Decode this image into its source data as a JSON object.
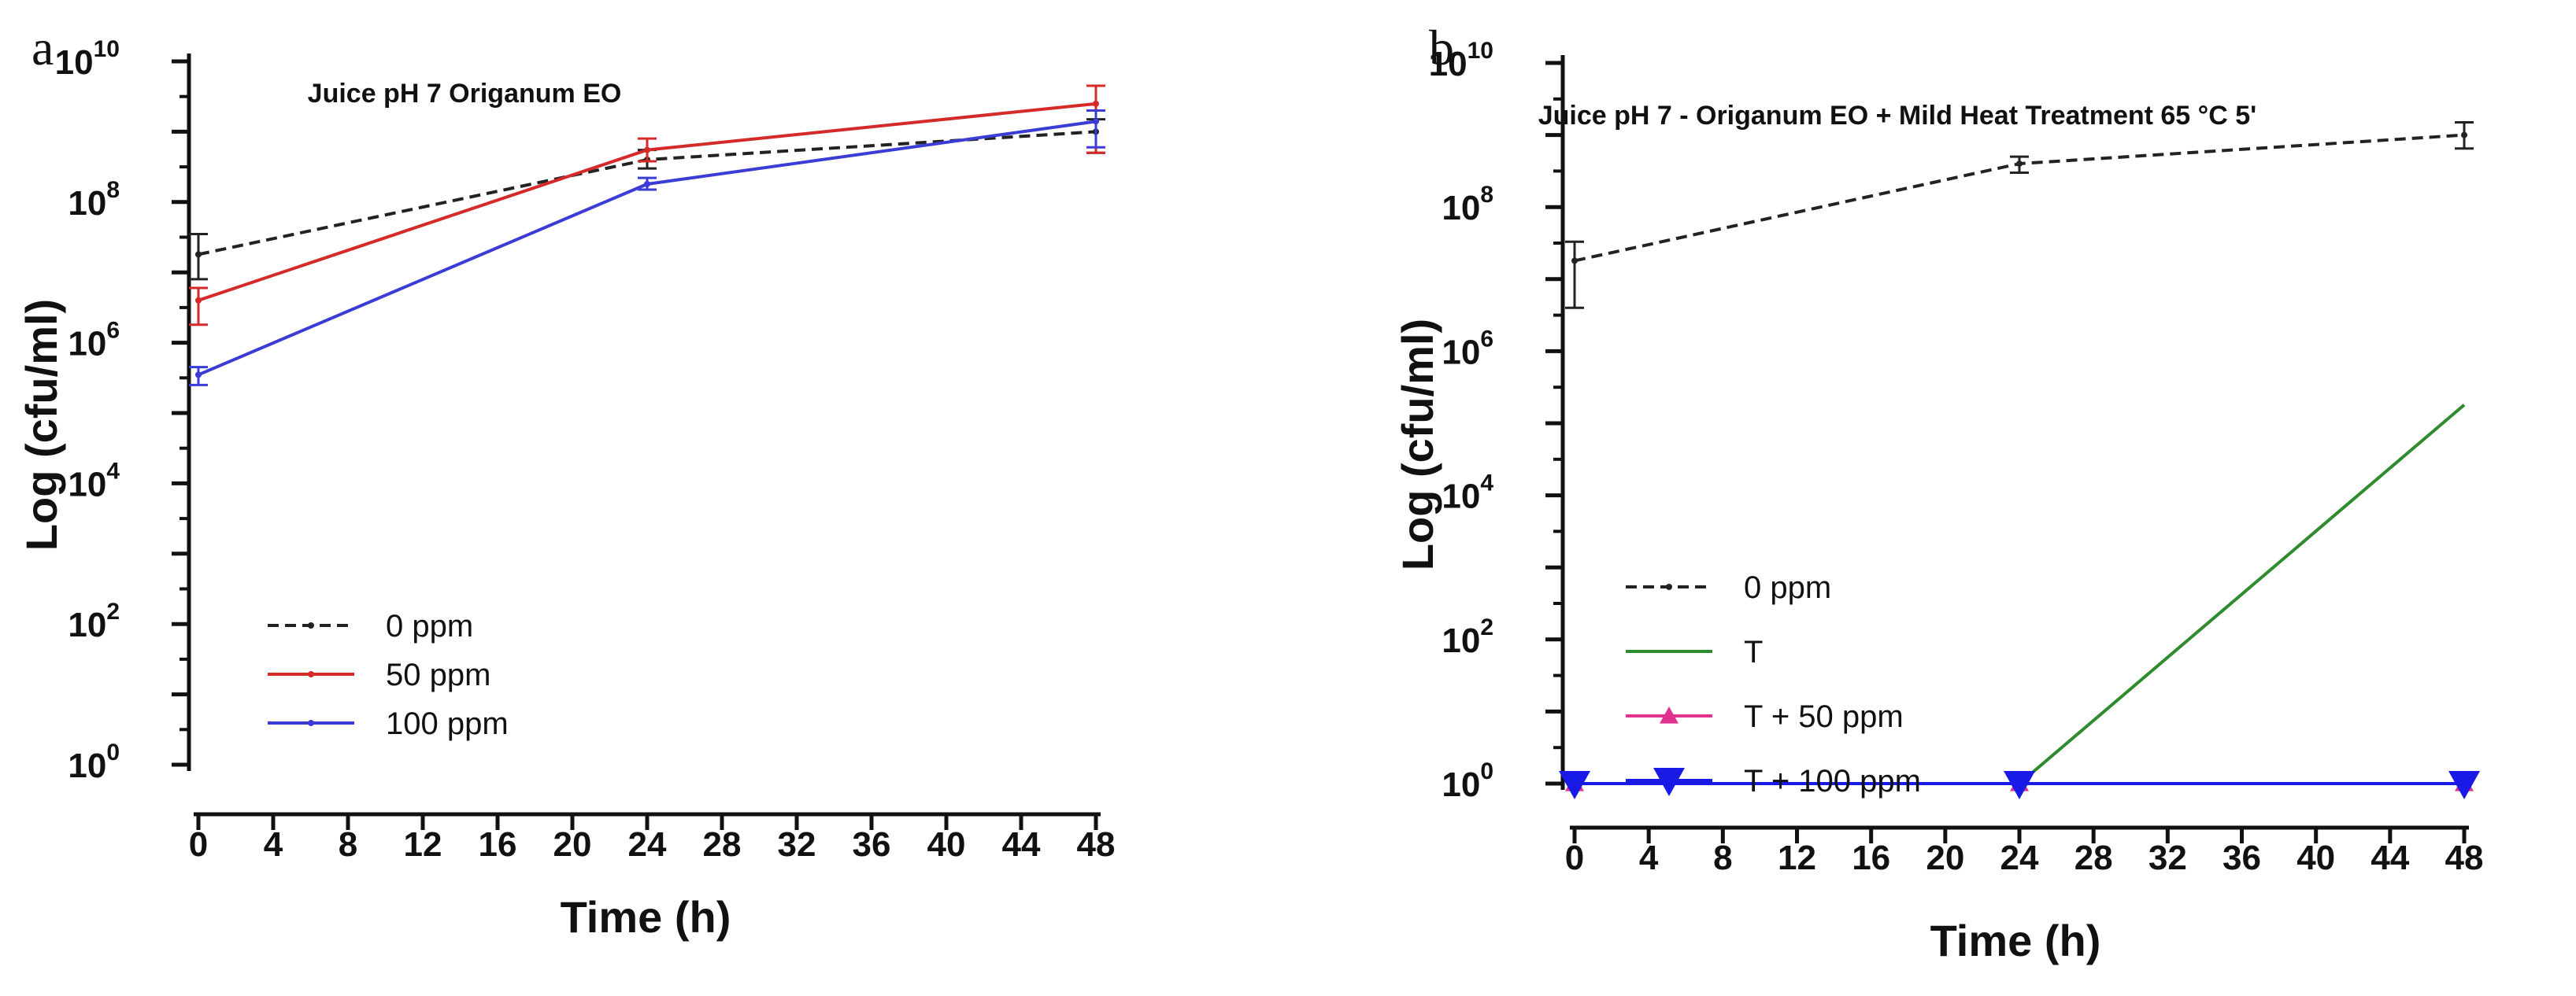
{
  "chart_data": [
    {
      "type": "line",
      "panel_label": "a",
      "title": "Juice pH 7 Origanum EO",
      "xlabel": "Time (h)",
      "ylabel": "Log (cfu/ml)",
      "xlim": [
        0,
        48
      ],
      "ylim": [
        1,
        10000000000
      ],
      "yscale": "log",
      "x_ticks": [
        0,
        4,
        8,
        12,
        16,
        20,
        24,
        28,
        32,
        36,
        40,
        44,
        48
      ],
      "y_ticks": [
        {
          "base": "10",
          "exp": "0"
        },
        {
          "base": "10",
          "exp": "2"
        },
        {
          "base": "10",
          "exp": "4"
        },
        {
          "base": "10",
          "exp": "6"
        },
        {
          "base": "10",
          "exp": "8"
        },
        {
          "base": "10",
          "exp": "10"
        }
      ],
      "legend_position": "bottom-left",
      "series": [
        {
          "name": "0 ppm",
          "color": "#222222",
          "dash": "dashed",
          "marker": "dot",
          "x": [
            0,
            24,
            48
          ],
          "y": [
            18000000,
            400000000,
            1000000000
          ],
          "err_low": [
            8000000,
            300000000,
            500000000
          ],
          "err_high": [
            35000000,
            550000000,
            1500000000
          ]
        },
        {
          "name": "50 ppm",
          "color": "#d42a2a",
          "dash": "solid",
          "marker": "dot",
          "x": [
            0,
            24,
            48
          ],
          "y": [
            4000000,
            550000000,
            2500000000
          ],
          "err_low": [
            1800000,
            380000000,
            500000000
          ],
          "err_high": [
            6000000,
            800000000,
            4500000000
          ]
        },
        {
          "name": "100 ppm",
          "color": "#3b3bd6",
          "dash": "solid",
          "marker": "dot",
          "x": [
            0,
            24,
            48
          ],
          "y": [
            350000,
            180000000,
            1400000000
          ],
          "err_low": [
            250000,
            150000000,
            600000000
          ],
          "err_high": [
            450000,
            220000000,
            2000000000
          ]
        }
      ]
    },
    {
      "type": "line",
      "panel_label": "b",
      "title": "Juice pH 7 - Origanum EO + Mild Heat Treatment 65 °C 5'",
      "xlabel": "Time (h)",
      "ylabel": "Log (cfu/ml)",
      "xlim": [
        0,
        48
      ],
      "ylim": [
        1,
        10000000000
      ],
      "yscale": "log",
      "x_ticks": [
        0,
        4,
        8,
        12,
        16,
        20,
        24,
        28,
        32,
        36,
        40,
        44,
        48
      ],
      "y_ticks": [
        {
          "base": "10",
          "exp": "0"
        },
        {
          "base": "10",
          "exp": "2"
        },
        {
          "base": "10",
          "exp": "4"
        },
        {
          "base": "10",
          "exp": "6"
        },
        {
          "base": "10",
          "exp": "8"
        },
        {
          "base": "10",
          "exp": "10"
        }
      ],
      "legend_position": "bottom-left",
      "series": [
        {
          "name": "0 ppm",
          "color": "#222222",
          "dash": "dashed",
          "marker": "dot",
          "x": [
            0,
            24,
            48
          ],
          "y": [
            18000000,
            400000000,
            1000000000
          ],
          "err_low": [
            4000000,
            300000000,
            650000000
          ],
          "err_high": [
            33000000,
            500000000,
            1500000000
          ]
        },
        {
          "name": "T",
          "color": "#2e8b2e",
          "dash": "solid",
          "marker": "none",
          "x": [
            0,
            24,
            48
          ],
          "y": [
            1,
            1,
            180000
          ]
        },
        {
          "name": "T + 50 ppm",
          "color": "#e0338f",
          "dash": "solid",
          "marker": "triangle-up",
          "x": [
            0,
            24,
            48
          ],
          "y": [
            1,
            1,
            1
          ]
        },
        {
          "name": "T + 100 ppm",
          "color": "#1a1ae6",
          "dash": "solid",
          "marker": "triangle-down",
          "x": [
            0,
            24,
            48
          ],
          "y": [
            1,
            1,
            1
          ]
        }
      ]
    }
  ]
}
